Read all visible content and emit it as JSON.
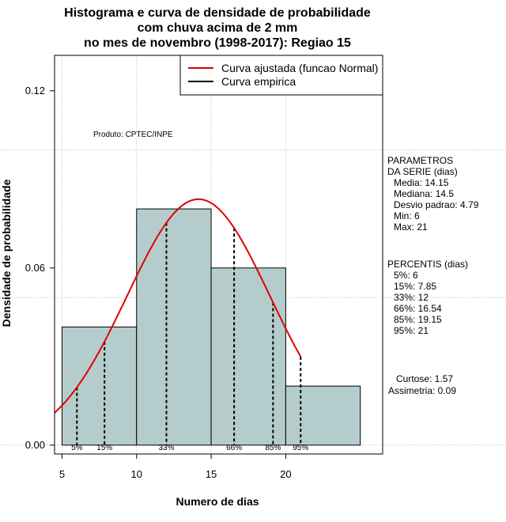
{
  "chart_data": {
    "type": "bar",
    "title_lines": [
      "Histograma e curva de densidade de probabilidade",
      "com chuva acima de 2 mm",
      "no mes de novembro (1998-2017): Regiao 15"
    ],
    "xlabel": "Numero de dias",
    "ylabel": "Densidade de probabilidade",
    "xlim": [
      4.5,
      26.5
    ],
    "ylim": [
      -0.003,
      0.132
    ],
    "x_ticks": [
      "5",
      "10",
      "15",
      "20"
    ],
    "y_ticks": [
      "0.00",
      "0.06",
      "0.12"
    ],
    "bins": [
      {
        "start": 5,
        "end": 10,
        "density": 0.04
      },
      {
        "start": 10,
        "end": 15,
        "density": 0.08
      },
      {
        "start": 15,
        "end": 20,
        "density": 0.06
      },
      {
        "start": 20,
        "end": 25,
        "density": 0.02
      }
    ],
    "fitted_curve": {
      "mean": 14.15,
      "sd": 4.79,
      "x_range": [
        4.5,
        21
      ],
      "color": "#e00000"
    },
    "percentile_lines": [
      {
        "label": "5%",
        "x": 6
      },
      {
        "label": "15%",
        "x": 7.85
      },
      {
        "label": "33%",
        "x": 12
      },
      {
        "label": "66%",
        "x": 16.54
      },
      {
        "label": "85%",
        "x": 19.15
      },
      {
        "label": "95%",
        "x": 21
      }
    ],
    "legend": {
      "position": "top-right",
      "items": [
        {
          "label": "Curva ajustada (funcao Normal)",
          "color": "#e00000"
        },
        {
          "label": "Curva empirica",
          "color": "#000000"
        }
      ]
    },
    "annotation": "Produto: CPTEC/INPE",
    "grid": true,
    "bar_color": "#b5cccc"
  },
  "side_panel": {
    "params_title_1": "PARAMETROS",
    "params_title_2": "DA SERIE (dias)",
    "media": "Media: 14.15",
    "mediana": "Mediana: 14.5",
    "desvio": "Desvio padrao: 4.79",
    "min": "Min: 6",
    "max": "Max: 21",
    "perc_title": "PERCENTIS (dias)",
    "p5": "5%: 6",
    "p15": "15%: 7.85",
    "p33": "33%: 12",
    "p66": "66%: 16.54",
    "p85": "85%: 19.15",
    "p95": "95%: 21",
    "curtose": "Curtose: 1.57",
    "assimetria": "Assimetria: 0.09"
  }
}
